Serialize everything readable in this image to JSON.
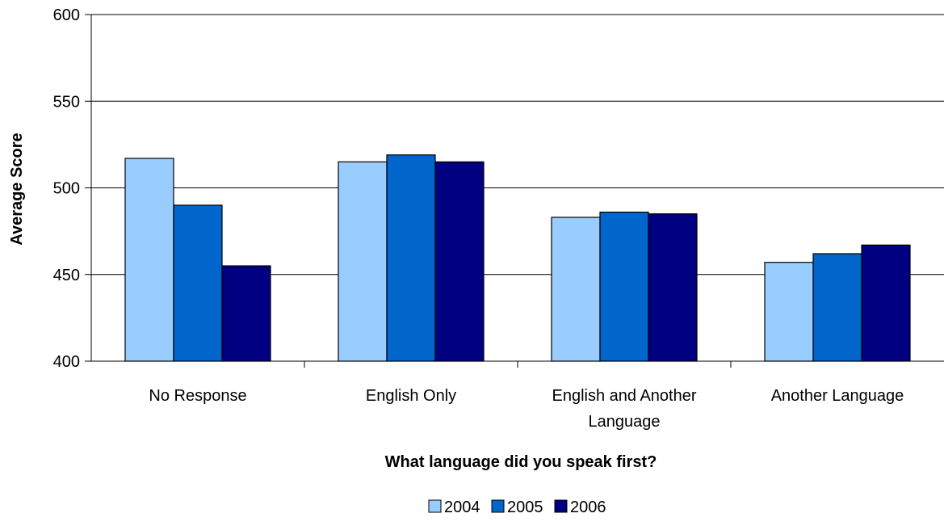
{
  "chart_data": {
    "type": "bar",
    "categories": [
      "No Response",
      "English Only",
      "English and Another Language",
      "Another Language"
    ],
    "category_lines": [
      [
        "No Response"
      ],
      [
        "English Only"
      ],
      [
        "English and Another",
        "Language"
      ],
      [
        "Another Language"
      ]
    ],
    "series": [
      {
        "name": "2004",
        "color": "#99CCFF",
        "values": [
          517,
          515,
          483,
          457
        ]
      },
      {
        "name": "2005",
        "color": "#0066CC",
        "values": [
          490,
          519,
          486,
          462
        ]
      },
      {
        "name": "2006",
        "color": "#000080",
        "values": [
          455,
          515,
          485,
          467
        ]
      }
    ],
    "title": "",
    "xlabel": "What language did you speak first?",
    "ylabel": "Average Score",
    "ylim": [
      400,
      600
    ],
    "yticks": [
      400,
      450,
      500,
      550,
      600
    ],
    "grid": true,
    "legend": "bottom"
  }
}
